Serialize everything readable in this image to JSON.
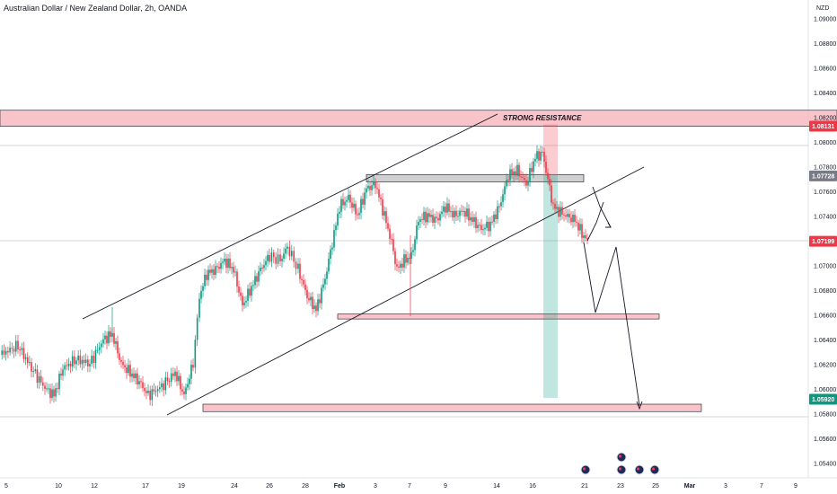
{
  "header": {
    "title": "Australian Dollar / New Zealand Dollar, 2h, OANDA"
  },
  "chart_data": {
    "type": "candlestick",
    "symbol": "AUDNZD",
    "timeframe": "2h",
    "source": "OANDA",
    "currency": "NZD",
    "y_ticks": [
      "1.09000",
      "1.08800",
      "1.08600",
      "1.08400",
      "1.08200",
      "1.08000",
      "1.07800",
      "1.07600",
      "1.07400",
      "1.07200",
      "1.07000",
      "1.06800",
      "1.06600",
      "1.06400",
      "1.06200",
      "1.06000",
      "1.05800",
      "1.05600",
      "1.05400"
    ],
    "y_tick_values": [
      1.09,
      1.088,
      1.086,
      1.084,
      1.082,
      1.08,
      1.078,
      1.076,
      1.074,
      1.072,
      1.07,
      1.068,
      1.066,
      1.064,
      1.062,
      1.06,
      1.058,
      1.056,
      1.054
    ],
    "ylim": [
      1.052,
      1.092
    ],
    "x_ticks": [
      "5",
      "10",
      "12",
      "17",
      "19",
      "24",
      "26",
      "28",
      "Feb",
      "3",
      "7",
      "9",
      "14",
      "16",
      "21",
      "23",
      "25",
      "Mar",
      "3",
      "7",
      "9"
    ],
    "price_badges": [
      {
        "label": "1.08131",
        "value": 1.08131,
        "color": "#f23645"
      },
      {
        "label": "1.07728",
        "value": 1.07728,
        "color": "#787b86"
      },
      {
        "label": "1.07199",
        "value": 1.07199,
        "color": "#f23645"
      },
      {
        "label": "1.05920",
        "value": 1.0592,
        "color": "#089981"
      }
    ],
    "annotations": [
      {
        "text": "STRONG RESISTANCE"
      }
    ],
    "zones": [
      {
        "name": "strong-resistance",
        "y_low": 1.0813,
        "y_high": 1.0826,
        "color": "#f7b9c0"
      },
      {
        "name": "resistance-gray",
        "y_low": 1.0768,
        "y_high": 1.0774,
        "color": "#c8c8c8"
      },
      {
        "name": "support-mid",
        "y_low": 1.0657,
        "y_high": 1.0661,
        "color": "#f7b9c0"
      },
      {
        "name": "target-support",
        "y_low": 1.0582,
        "y_high": 1.0588,
        "color": "#f7b9c0"
      }
    ],
    "events": 5,
    "colors": {
      "up": "#089981",
      "down": "#f23645",
      "grid": "#f0f3fa",
      "text": "#131722"
    },
    "grid": false
  }
}
